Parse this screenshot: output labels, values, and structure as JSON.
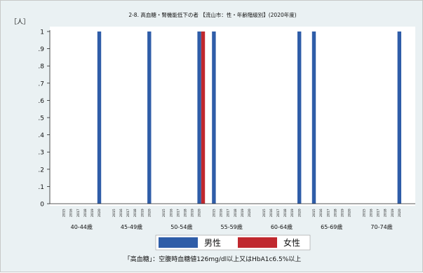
{
  "chart_data": {
    "type": "bar",
    "title": "2-8. 高血糖・腎機能低下の者 【流山市：性・年齢階級別】(2020年度)",
    "ylabel": "［人］",
    "ylim": [
      0,
      1
    ],
    "yticks": [
      "0",
      ".1",
      ".2",
      ".3",
      ".4",
      ".5",
      ".6",
      ".7",
      ".8",
      ".9",
      "1"
    ],
    "grid": false,
    "legend_position": "bottom",
    "note": "「高血糖」：空腹時血糖値126mg/dl以上又はHbA1c6.5%以上",
    "groups": [
      "40-44歳",
      "45-49歳",
      "50-54歳",
      "55-59歳",
      "60-64歳",
      "65-69歳",
      "70-74歳"
    ],
    "years": [
      "2015",
      "2016",
      "2017",
      "2018",
      "2019",
      "2020"
    ],
    "series": [
      {
        "name": "男性",
        "color": "#2f5da8",
        "values": [
          [
            0,
            0,
            0,
            0,
            0,
            1
          ],
          [
            0,
            0,
            0,
            0,
            0,
            1
          ],
          [
            0,
            0,
            0,
            0,
            0,
            1
          ],
          [
            1,
            0,
            0,
            0,
            0,
            0
          ],
          [
            0,
            0,
            0,
            0,
            0,
            1
          ],
          [
            1,
            0,
            0,
            0,
            0,
            0
          ],
          [
            0,
            0,
            0,
            0,
            0,
            1
          ]
        ]
      },
      {
        "name": "女性",
        "color": "#c0282e",
        "values": [
          [
            0,
            0,
            0,
            0,
            0,
            0
          ],
          [
            0,
            0,
            0,
            0,
            0,
            0
          ],
          [
            0,
            0,
            0,
            0,
            0,
            1
          ],
          [
            0,
            0,
            0,
            0,
            0,
            0
          ],
          [
            0,
            0,
            0,
            0,
            0,
            0
          ],
          [
            0,
            0,
            0,
            0,
            0,
            0
          ],
          [
            0,
            0,
            0,
            0,
            0,
            0
          ]
        ]
      }
    ]
  }
}
